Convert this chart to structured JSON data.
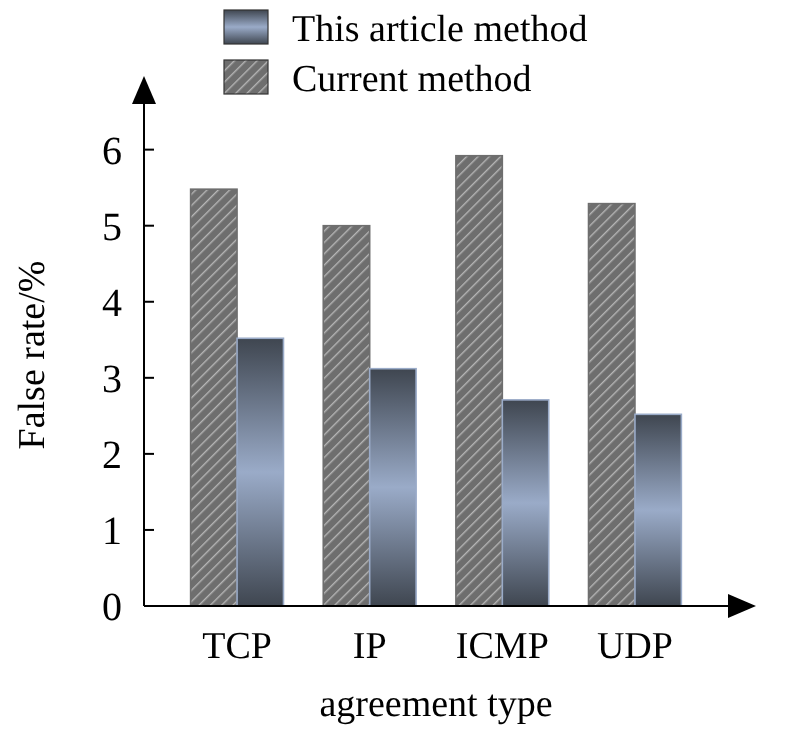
{
  "chart_data": {
    "type": "bar",
    "xlabel": "agreement type",
    "ylabel": "False rate/%",
    "categories": [
      "TCP",
      "IP",
      "ICMP",
      "UDP"
    ],
    "series": [
      {
        "name": "Current method",
        "color": "#6e6e6e",
        "values": [
          5.48,
          5.0,
          5.92,
          5.29
        ]
      },
      {
        "name": "This article method",
        "color": "#9aabc8",
        "values": [
          3.52,
          3.12,
          2.71,
          2.52
        ]
      }
    ],
    "ylim": [
      0,
      6.6
    ],
    "yticks": [
      0,
      1,
      2,
      3,
      4,
      5,
      6
    ],
    "grid": false,
    "legend": "top"
  }
}
